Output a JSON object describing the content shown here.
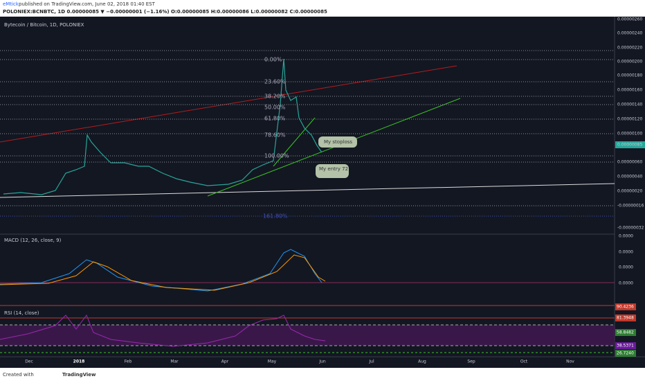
{
  "header": {
    "author": "eMtick",
    "published": " published on TradingView.com, June 02, 2018 01:40 EST",
    "ticker": "POLONIEX:BCNBTC, 1D 0.00000085 ▼ −0.00000001 (−1.16%) O:0.00000085 H:0.00000086 L:0.00000082 C:0.00000085"
  },
  "main_pane": {
    "title": "Bytecoin / Bitcoin, 1D, POLONIEX",
    "price_labels": [
      "0.00000260",
      "0.00000240",
      "0.00000220",
      "0.00000200",
      "0.00000180",
      "0.00000160",
      "0.00000140",
      "0.00000120",
      "0.00000100",
      "0.00000085",
      "0.00000060",
      "0.00000040",
      "0.00000020",
      "-0.00000016",
      "-0.00000032"
    ],
    "fib_levels": [
      "0.00%",
      "23.60%",
      "38.20%",
      "50.00%",
      "61.80%",
      "78.60%",
      "100.00%",
      "161.80%"
    ],
    "annotations": [
      "My stoploss",
      "My entry 72"
    ]
  },
  "macd_pane": {
    "title": "MACD (12, 26, close, 9)",
    "labels": [
      "0.0000",
      "0.0000",
      "0.0000",
      "0.0000"
    ]
  },
  "rsi_pane": {
    "title": "RSI (14, close)",
    "labels": [
      "90.4236",
      "81.3948",
      "58.8482",
      "38.5371",
      "26.7240"
    ]
  },
  "time_axis": [
    "Dec",
    "2018",
    "Feb",
    "Mar",
    "Apr",
    "May",
    "Jun",
    "Jul",
    "Aug",
    "Sep",
    "Oct",
    "Nov"
  ],
  "footer": {
    "created": "Created with",
    "brand": "TradingView"
  }
}
